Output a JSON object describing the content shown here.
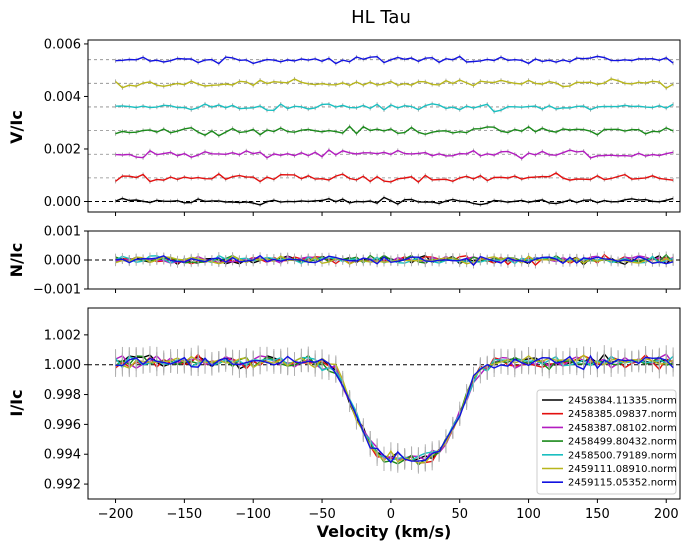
{
  "chart_data": {
    "type": "line",
    "title": "HL Tau",
    "xlabel": "Velocity (km/s)",
    "xlim": [
      -220,
      210
    ],
    "xticks": [
      -200,
      -150,
      -100,
      -50,
      0,
      50,
      100,
      150,
      200
    ],
    "xtick_labels": [
      "−200",
      "−150",
      "−100",
      "−50",
      "0",
      "50",
      "100",
      "150",
      "200"
    ],
    "panels": [
      {
        "id": "V",
        "ylabel": "V/Ic",
        "ylim": [
          -0.0004,
          0.00615
        ],
        "yticks": [
          0.0,
          0.002,
          0.004,
          0.006
        ],
        "ytick_labels": [
          "0.000",
          "0.002",
          "0.004",
          "0.006"
        ],
        "offset_step": 0.0009,
        "reference_line": 0.0,
        "noise_amplitude": 0.00012,
        "error_bar": 8e-05
      },
      {
        "id": "N",
        "ylabel": "N/Ic",
        "ylim": [
          -0.001,
          0.001
        ],
        "yticks": [
          -0.001,
          0.0,
          0.001
        ],
        "ytick_labels": [
          "−0.001",
          "0.000",
          "0.001"
        ],
        "reference_line": 0.0,
        "noise_amplitude": 0.00012,
        "error_bar": 0.00012
      },
      {
        "id": "I",
        "ylabel": "I/Ic",
        "ylim": [
          0.991,
          1.0038
        ],
        "yticks": [
          0.992,
          0.994,
          0.996,
          0.998,
          1.0,
          1.002
        ],
        "ytick_labels": [
          "0.992",
          "0.994",
          "0.996",
          "0.998",
          "1.000",
          "1.002"
        ],
        "reference_line": 1.0,
        "noise_amplitude": 0.00035,
        "error_bar": 0.0006,
        "line_center": 12,
        "line_depth": 0.0065,
        "line_width": 30
      }
    ],
    "velocity_range": [
      -200,
      205
    ],
    "velocity_step": 5,
    "series": [
      {
        "name": "2458384.11335.norm",
        "color": "#000000"
      },
      {
        "name": "2458385.09837.norm",
        "color": "#e3100f"
      },
      {
        "name": "2458387.08102.norm",
        "color": "#b31cc0"
      },
      {
        "name": "2458499.80432.norm",
        "color": "#1b8a1b"
      },
      {
        "name": "2458500.79189.norm",
        "color": "#1bbfc0"
      },
      {
        "name": "2459111.08910.norm",
        "color": "#b8b61c"
      },
      {
        "name": "2459115.05352.norm",
        "color": "#1212e0"
      }
    ],
    "legend_position": "lower-right",
    "grid": false
  }
}
